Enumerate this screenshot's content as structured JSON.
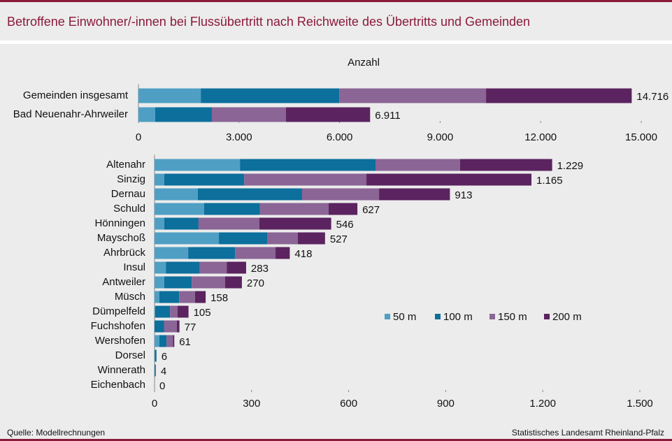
{
  "title": "Betroffene Einwohner/-innen bei Flussübertritt nach Reichweite des Übertritts und Gemeinden",
  "source": "Quelle: Modellrechnungen",
  "publisher": "Statistisches Landesamt Rheinland-Pfalz",
  "chart_data": [
    {
      "type": "stacked-barh",
      "xlabel": "Anzahl",
      "categories": [
        "Gemeinden insgesamt",
        "Bad Neuenahr-Ahrweiler"
      ],
      "series": [
        {
          "color": "#4f9fc4",
          "values": [
            1860,
            500
          ]
        },
        {
          "color": "#0c6f9c",
          "values": [
            4130,
            1690
          ]
        },
        {
          "color": "#8a6595",
          "values": [
            4380,
            2210
          ]
        },
        {
          "color": "#5b2360",
          "values": [
            4346,
            2511
          ]
        }
      ],
      "totals": [
        {
          "value": 14716,
          "label": "14.716"
        },
        {
          "value": 6911,
          "label": "6.911"
        }
      ],
      "xlim": [
        0,
        15000
      ],
      "xticks": [
        0,
        {
          "value": 3000,
          "label": "3.000"
        },
        {
          "value": 6000,
          "label": "6.000"
        },
        {
          "value": 9000,
          "label": "9.000"
        },
        {
          "value": 12000,
          "label": "12.000"
        },
        {
          "value": 15000,
          "label": "15.000"
        }
      ]
    },
    {
      "type": "stacked-barh",
      "categories": [
        "Altenahr",
        "Sinzig",
        "Dernau",
        "Schuld",
        "Hönningen",
        "Mayschoß",
        "Ahrbrück",
        "Insul",
        "Antweiler",
        "Müsch",
        "Dümpelfeld",
        "Fuchshofen",
        "Wershofen",
        "Dorsel",
        "Winnerath",
        "Eichenbach"
      ],
      "series": [
        {
          "name": "50 m",
          "color": "#4f9fc4",
          "values": [
            264,
            30,
            134,
            153,
            30,
            199,
            104,
            35,
            30,
            15,
            2,
            0,
            15,
            1,
            0,
            0
          ]
        },
        {
          "name": "100 m",
          "color": "#0c6f9c",
          "values": [
            419,
            247,
            322,
            173,
            106,
            149,
            145,
            105,
            85,
            61,
            46,
            30,
            22,
            5,
            2,
            0
          ]
        },
        {
          "name": "150 m",
          "color": "#8a6595",
          "values": [
            261,
            378,
            238,
            212,
            188,
            95,
            125,
            83,
            103,
            49,
            23,
            39,
            20,
            0,
            1,
            0
          ]
        },
        {
          "name": "200 m",
          "color": "#5b2360",
          "values": [
            285,
            510,
            219,
            89,
            222,
            84,
            44,
            60,
            52,
            33,
            34,
            8,
            4,
            0,
            1,
            0
          ]
        }
      ],
      "totals": [
        {
          "value": 1229,
          "label": "1.229"
        },
        {
          "value": 1165,
          "label": "1.165"
        },
        913,
        627,
        546,
        527,
        418,
        283,
        270,
        158,
        105,
        77,
        61,
        6,
        4,
        0
      ],
      "xlim": [
        0,
        1500
      ],
      "xticks": [
        0,
        300,
        600,
        900,
        {
          "value": 1200,
          "label": "1.200"
        },
        {
          "value": 1500,
          "label": "1.500"
        }
      ]
    }
  ]
}
